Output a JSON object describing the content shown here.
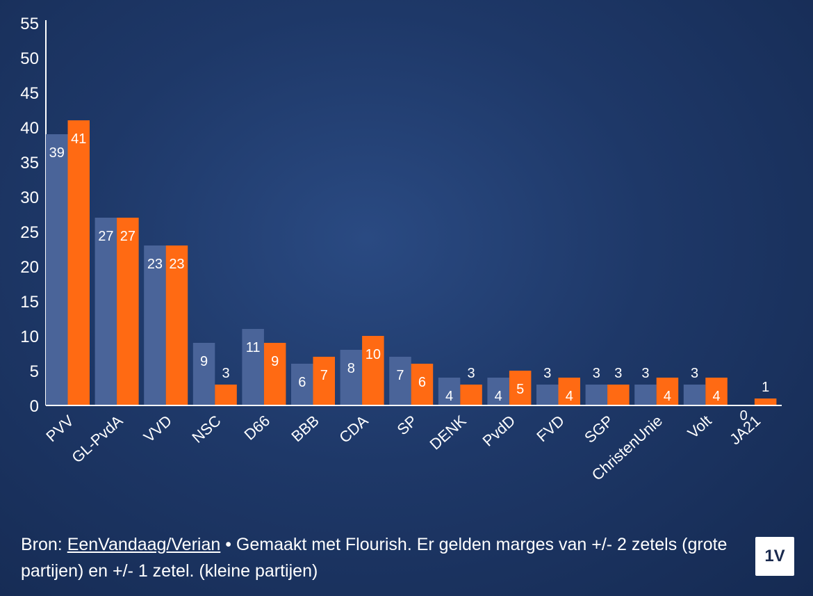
{
  "chart_data": {
    "type": "bar",
    "categories": [
      "PVV",
      "GL-PvdA",
      "VVD",
      "NSC",
      "D66",
      "BBB",
      "CDA",
      "SP",
      "DENK",
      "PvdD",
      "FVD",
      "SGP",
      "ChristenUnie",
      "Volt",
      "JA21"
    ],
    "series": [
      {
        "values": [
          39,
          27,
          23,
          9,
          11,
          6,
          8,
          7,
          4,
          4,
          3,
          3,
          3,
          3,
          0
        ],
        "color": "#4a6499"
      },
      {
        "values": [
          41,
          27,
          23,
          3,
          9,
          7,
          10,
          6,
          3,
          5,
          4,
          3,
          4,
          4,
          1
        ],
        "color": "#ff6a13"
      }
    ],
    "ylim": [
      0,
      55
    ],
    "yticks": [
      0,
      5,
      10,
      15,
      20,
      25,
      30,
      35,
      40,
      45,
      50,
      55
    ],
    "grid": false,
    "xlabel": "",
    "ylabel": ""
  },
  "footer": {
    "prefix": "Bron: ",
    "source_link": "EenVandaag/Verian",
    "text": " • Gemaakt met Flourish. Er gelden marges van +/- 2 zetels (grote partijen) en +/- 1 zetel. (kleine partijen)"
  },
  "logo": {
    "text": "1V"
  }
}
